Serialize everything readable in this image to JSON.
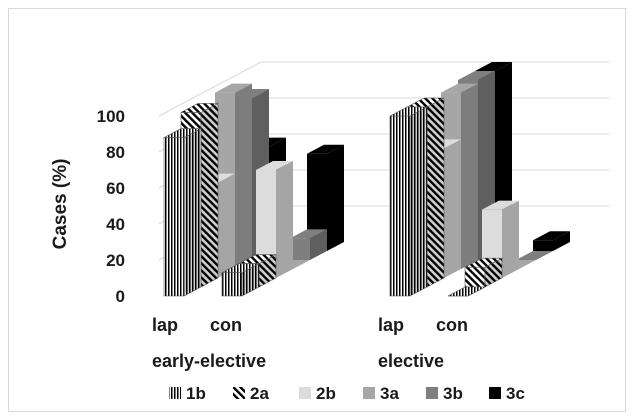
{
  "chart_data": {
    "type": "bar",
    "variant": "3d-clustered",
    "title": "",
    "ylabel": "Cases (%)",
    "ylim": [
      0,
      100
    ],
    "yticks": [
      "0",
      "20",
      "40",
      "60",
      "80",
      "100"
    ],
    "grid": true,
    "legend_position": "bottom",
    "groups": [
      {
        "label": "early-elective",
        "subcategories": [
          "lap",
          "con"
        ],
        "series": [
          {
            "name": "1b",
            "values": [
              88,
              13
            ],
            "color": "#000000",
            "pattern": "vertical-stripes"
          },
          {
            "name": "2a",
            "values": [
              97,
              13
            ],
            "color": "#000000",
            "pattern": "diagonal-stripes"
          },
          {
            "name": "2b",
            "values": [
              53,
              60
            ],
            "color": "#dcdcdc",
            "pattern": "solid"
          },
          {
            "name": "3a",
            "values": [
              98,
              0
            ],
            "color": "#a6a6a6",
            "pattern": "solid"
          },
          {
            "name": "3b",
            "values": [
              90,
              12
            ],
            "color": "#7f7f7f",
            "pattern": "solid"
          },
          {
            "name": "3c",
            "values": [
              58,
              54
            ],
            "color": "#000000",
            "pattern": "solid"
          }
        ]
      },
      {
        "label": "elective",
        "subcategories": [
          "lap",
          "con"
        ],
        "series": [
          {
            "name": "1b",
            "values": [
              100,
              0
            ],
            "color": "#000000",
            "pattern": "vertical-stripes"
          },
          {
            "name": "2a",
            "values": [
              100,
              11
            ],
            "color": "#000000",
            "pattern": "diagonal-stripes"
          },
          {
            "name": "2b",
            "values": [
              72,
              38
            ],
            "color": "#dcdcdc",
            "pattern": "solid"
          },
          {
            "name": "3a",
            "values": [
              98,
              0
            ],
            "color": "#a6a6a6",
            "pattern": "solid"
          },
          {
            "name": "3b",
            "values": [
              100,
              0
            ],
            "color": "#7f7f7f",
            "pattern": "solid"
          },
          {
            "name": "3c",
            "values": [
              100,
              6
            ],
            "color": "#000000",
            "pattern": "solid"
          }
        ]
      }
    ]
  }
}
